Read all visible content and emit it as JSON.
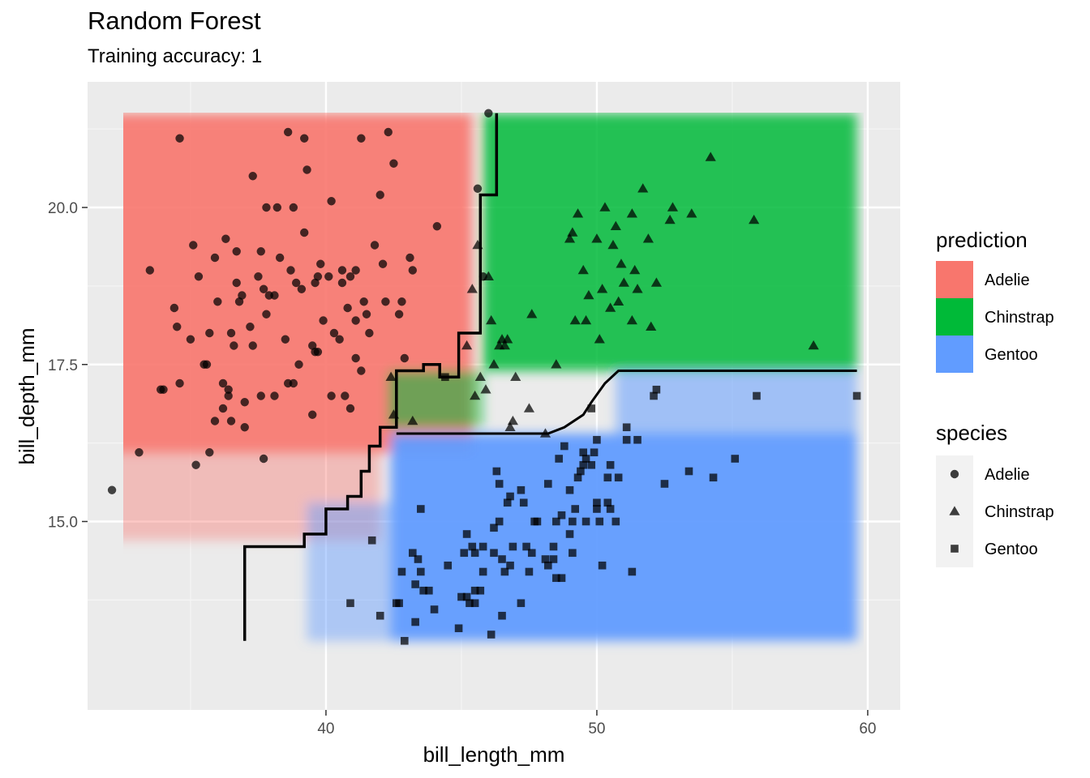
{
  "chart_data": {
    "type": "scatter",
    "title": "Random Forest",
    "subtitle": "Training accuracy: 1",
    "xlabel": "bill_length_mm",
    "ylabel": "bill_depth_mm",
    "xlim": [
      31.2,
      61.2
    ],
    "ylim": [
      12.0,
      22.0
    ],
    "x_ticks": [
      "40",
      "50",
      "60"
    ],
    "y_ticks": [
      "15.0",
      "17.5",
      "20.0"
    ],
    "grid": "on",
    "legend_placement": "right",
    "background": {
      "panel": "#ebebeb",
      "grid_major": "#ffffff"
    },
    "prediction_legend": {
      "title": "prediction",
      "entries": [
        {
          "name": "Adelie",
          "color": "#f8766d"
        },
        {
          "name": "Chinstrap",
          "color": "#00ba38"
        },
        {
          "name": "Gentoo",
          "color": "#619cff"
        }
      ]
    },
    "species_legend": {
      "title": "species",
      "entries": [
        {
          "name": "Adelie",
          "shape": "circle"
        },
        {
          "name": "Chinstrap",
          "shape": "triangle"
        },
        {
          "name": "Gentoo",
          "shape": "square"
        }
      ]
    },
    "prediction_regions": [
      {
        "class": "Adelie",
        "x": [
          32.1,
          45.4
        ],
        "y": [
          16.1,
          21.5
        ],
        "opacity": 0.9
      },
      {
        "class": "Adelie",
        "x": [
          32.1,
          42.0
        ],
        "y": [
          14.7,
          16.1
        ],
        "opacity": 0.4
      },
      {
        "class": "Chinstrap",
        "x": [
          45.8,
          59.6
        ],
        "y": [
          17.4,
          21.5
        ],
        "opacity": 0.85
      },
      {
        "class": "Chinstrap",
        "x": [
          42.3,
          45.8
        ],
        "y": [
          16.5,
          17.4
        ],
        "opacity": 0.55
      },
      {
        "class": "Gentoo",
        "x": [
          42.4,
          59.6
        ],
        "y": [
          13.1,
          16.4
        ],
        "opacity": 0.95
      },
      {
        "class": "Gentoo",
        "x": [
          50.7,
          59.6
        ],
        "y": [
          16.4,
          17.4
        ],
        "opacity": 0.55
      },
      {
        "class": "Gentoo",
        "x": [
          39.3,
          42.4
        ],
        "y": [
          13.1,
          15.3
        ],
        "opacity": 0.45
      }
    ],
    "decision_boundary": [
      [
        46.3,
        21.5
      ],
      [
        46.3,
        20.2
      ],
      [
        45.7,
        20.2
      ],
      [
        45.7,
        18.0
      ],
      [
        44.9,
        18.0
      ],
      [
        44.9,
        17.3
      ],
      [
        44.2,
        17.3
      ],
      [
        44.2,
        17.5
      ],
      [
        43.6,
        17.5
      ],
      [
        43.6,
        17.4
      ],
      [
        42.6,
        17.4
      ],
      [
        42.6,
        16.5
      ],
      [
        42.0,
        16.5
      ],
      [
        42.0,
        16.2
      ],
      [
        41.6,
        16.2
      ],
      [
        41.6,
        15.8
      ],
      [
        41.3,
        15.8
      ],
      [
        41.3,
        15.4
      ],
      [
        40.8,
        15.4
      ],
      [
        40.8,
        15.2
      ],
      [
        40.0,
        15.2
      ],
      [
        40.0,
        14.8
      ],
      [
        39.2,
        14.8
      ],
      [
        39.2,
        14.6
      ],
      [
        37.0,
        14.6
      ],
      [
        37.0,
        13.1
      ]
    ],
    "boundary_gentoo_top": [
      [
        42.6,
        16.4
      ],
      [
        48.2,
        16.4
      ],
      [
        48.8,
        16.5
      ],
      [
        49.5,
        16.7
      ],
      [
        49.8,
        16.9
      ],
      [
        50.3,
        17.2
      ],
      [
        50.8,
        17.4
      ],
      [
        59.6,
        17.4
      ]
    ],
    "series": [
      {
        "name": "Adelie",
        "shape": "circle",
        "points": [
          [
            32.1,
            15.5
          ],
          [
            33.1,
            16.1
          ],
          [
            33.5,
            19.0
          ],
          [
            33.9,
            17.1
          ],
          [
            34.0,
            17.1
          ],
          [
            34.4,
            18.4
          ],
          [
            34.5,
            18.1
          ],
          [
            34.6,
            21.1
          ],
          [
            34.6,
            17.2
          ],
          [
            35.0,
            17.9
          ],
          [
            35.1,
            19.4
          ],
          [
            35.2,
            15.9
          ],
          [
            35.3,
            18.9
          ],
          [
            35.5,
            17.5
          ],
          [
            35.6,
            17.5
          ],
          [
            35.7,
            16.1
          ],
          [
            35.7,
            18.0
          ],
          [
            35.9,
            16.6
          ],
          [
            35.9,
            19.2
          ],
          [
            36.0,
            18.5
          ],
          [
            36.2,
            17.2
          ],
          [
            36.2,
            16.8
          ],
          [
            36.3,
            19.5
          ],
          [
            36.4,
            17.1
          ],
          [
            36.4,
            17.0
          ],
          [
            36.5,
            16.6
          ],
          [
            36.5,
            18.0
          ],
          [
            36.6,
            17.8
          ],
          [
            36.7,
            18.8
          ],
          [
            36.7,
            19.3
          ],
          [
            36.8,
            18.5
          ],
          [
            36.9,
            18.6
          ],
          [
            37.0,
            16.9
          ],
          [
            37.0,
            16.5
          ],
          [
            37.2,
            18.1
          ],
          [
            37.3,
            17.8
          ],
          [
            37.3,
            20.5
          ],
          [
            37.5,
            18.9
          ],
          [
            37.6,
            19.3
          ],
          [
            37.6,
            17.0
          ],
          [
            37.7,
            16.0
          ],
          [
            37.7,
            18.7
          ],
          [
            37.8,
            20.0
          ],
          [
            37.8,
            18.3
          ],
          [
            37.9,
            18.6
          ],
          [
            38.1,
            17.0
          ],
          [
            38.1,
            18.6
          ],
          [
            38.2,
            20.0
          ],
          [
            38.3,
            19.2
          ],
          [
            38.5,
            17.9
          ],
          [
            38.6,
            17.2
          ],
          [
            38.6,
            21.2
          ],
          [
            38.7,
            19.0
          ],
          [
            38.8,
            17.2
          ],
          [
            38.8,
            20.0
          ],
          [
            38.9,
            18.8
          ],
          [
            39.0,
            17.5
          ],
          [
            39.1,
            18.7
          ],
          [
            39.2,
            19.6
          ],
          [
            39.2,
            21.1
          ],
          [
            39.3,
            20.6
          ],
          [
            39.5,
            16.7
          ],
          [
            39.5,
            17.8
          ],
          [
            39.6,
            17.7
          ],
          [
            39.6,
            18.8
          ],
          [
            39.7,
            17.7
          ],
          [
            39.7,
            18.9
          ],
          [
            39.8,
            19.1
          ],
          [
            39.9,
            18.2
          ],
          [
            40.1,
            18.9
          ],
          [
            40.2,
            17.0
          ],
          [
            40.2,
            20.1
          ],
          [
            40.3,
            18.0
          ],
          [
            40.5,
            17.9
          ],
          [
            40.6,
            18.8
          ],
          [
            40.6,
            19.0
          ],
          [
            40.7,
            17.0
          ],
          [
            40.8,
            18.4
          ],
          [
            40.9,
            16.8
          ],
          [
            40.9,
            18.9
          ],
          [
            41.1,
            17.6
          ],
          [
            41.1,
            19.0
          ],
          [
            41.1,
            18.2
          ],
          [
            41.3,
            17.4
          ],
          [
            41.3,
            21.1
          ],
          [
            41.4,
            18.5
          ],
          [
            41.5,
            18.3
          ],
          [
            41.6,
            18.0
          ],
          [
            41.8,
            19.4
          ],
          [
            42.0,
            20.2
          ],
          [
            42.1,
            19.1
          ],
          [
            42.2,
            18.5
          ],
          [
            42.3,
            21.2
          ],
          [
            42.5,
            20.7
          ],
          [
            42.7,
            18.3
          ],
          [
            42.8,
            18.5
          ],
          [
            42.9,
            17.6
          ],
          [
            43.1,
            19.2
          ],
          [
            43.2,
            19.0
          ],
          [
            44.1,
            19.7
          ],
          [
            45.6,
            20.3
          ],
          [
            45.8,
            18.9
          ],
          [
            46.0,
            21.5
          ]
        ]
      },
      {
        "name": "Chinstrap",
        "shape": "triangle",
        "points": [
          [
            42.4,
            17.3
          ],
          [
            42.5,
            16.7
          ],
          [
            43.2,
            16.6
          ],
          [
            45.2,
            17.8
          ],
          [
            45.4,
            18.7
          ],
          [
            45.5,
            17.0
          ],
          [
            45.6,
            19.4
          ],
          [
            45.7,
            17.3
          ],
          [
            45.9,
            17.1
          ],
          [
            46.0,
            18.9
          ],
          [
            46.1,
            18.2
          ],
          [
            46.2,
            17.5
          ],
          [
            46.4,
            17.8
          ],
          [
            46.5,
            17.9
          ],
          [
            46.6,
            17.8
          ],
          [
            46.7,
            17.9
          ],
          [
            46.8,
            16.5
          ],
          [
            46.9,
            16.6
          ],
          [
            47.0,
            17.3
          ],
          [
            47.5,
            16.8
          ],
          [
            47.6,
            18.3
          ],
          [
            48.1,
            16.4
          ],
          [
            48.5,
            17.5
          ],
          [
            49.0,
            19.5
          ],
          [
            49.1,
            19.6
          ],
          [
            49.2,
            18.2
          ],
          [
            49.3,
            19.9
          ],
          [
            49.5,
            19.0
          ],
          [
            49.6,
            18.2
          ],
          [
            49.7,
            18.6
          ],
          [
            50.0,
            19.5
          ],
          [
            50.1,
            17.9
          ],
          [
            50.2,
            18.7
          ],
          [
            50.3,
            20.0
          ],
          [
            50.5,
            18.4
          ],
          [
            50.6,
            19.4
          ],
          [
            50.7,
            19.7
          ],
          [
            50.8,
            18.5
          ],
          [
            50.9,
            19.1
          ],
          [
            51.0,
            18.8
          ],
          [
            51.3,
            18.2
          ],
          [
            51.3,
            19.9
          ],
          [
            51.4,
            19.0
          ],
          [
            51.5,
            18.7
          ],
          [
            51.7,
            20.3
          ],
          [
            51.9,
            19.5
          ],
          [
            52.0,
            18.1
          ],
          [
            52.2,
            18.8
          ],
          [
            52.7,
            19.8
          ],
          [
            52.8,
            20.0
          ],
          [
            53.5,
            19.9
          ],
          [
            54.2,
            20.8
          ],
          [
            55.8,
            19.8
          ],
          [
            58.0,
            17.8
          ]
        ]
      },
      {
        "name": "Gentoo",
        "shape": "square",
        "points": [
          [
            40.9,
            13.7
          ],
          [
            41.7,
            14.7
          ],
          [
            42.0,
            13.5
          ],
          [
            42.6,
            13.7
          ],
          [
            42.7,
            13.7
          ],
          [
            42.8,
            14.2
          ],
          [
            42.9,
            13.1
          ],
          [
            43.2,
            14.5
          ],
          [
            43.3,
            13.4
          ],
          [
            43.3,
            14.0
          ],
          [
            43.4,
            14.4
          ],
          [
            43.5,
            14.2
          ],
          [
            43.5,
            15.2
          ],
          [
            43.6,
            13.9
          ],
          [
            43.8,
            13.9
          ],
          [
            44.0,
            13.6
          ],
          [
            44.4,
            17.3
          ],
          [
            44.5,
            14.3
          ],
          [
            44.9,
            13.3
          ],
          [
            45.0,
            13.8
          ],
          [
            45.1,
            14.5
          ],
          [
            45.2,
            13.8
          ],
          [
            45.2,
            14.8
          ],
          [
            45.3,
            13.7
          ],
          [
            45.4,
            14.6
          ],
          [
            45.5,
            13.7
          ],
          [
            45.5,
            13.9
          ],
          [
            45.5,
            14.5
          ],
          [
            45.7,
            13.9
          ],
          [
            45.8,
            14.2
          ],
          [
            45.8,
            14.6
          ],
          [
            46.1,
            13.2
          ],
          [
            46.2,
            14.5
          ],
          [
            46.2,
            14.9
          ],
          [
            46.3,
            15.8
          ],
          [
            46.4,
            15.0
          ],
          [
            46.4,
            15.6
          ],
          [
            46.5,
            13.5
          ],
          [
            46.5,
            14.4
          ],
          [
            46.6,
            14.2
          ],
          [
            46.7,
            15.3
          ],
          [
            46.8,
            14.3
          ],
          [
            46.8,
            15.4
          ],
          [
            46.9,
            14.6
          ],
          [
            47.2,
            13.7
          ],
          [
            47.2,
            15.5
          ],
          [
            47.3,
            15.3
          ],
          [
            47.4,
            14.6
          ],
          [
            47.5,
            14.2
          ],
          [
            47.6,
            14.5
          ],
          [
            47.7,
            15.0
          ],
          [
            47.8,
            15.0
          ],
          [
            48.1,
            14.4
          ],
          [
            48.2,
            14.3
          ],
          [
            48.2,
            15.6
          ],
          [
            48.4,
            14.4
          ],
          [
            48.4,
            14.6
          ],
          [
            48.5,
            14.1
          ],
          [
            48.5,
            15.0
          ],
          [
            48.6,
            16.0
          ],
          [
            48.7,
            14.1
          ],
          [
            48.7,
            15.1
          ],
          [
            48.8,
            16.2
          ],
          [
            49.0,
            14.8
          ],
          [
            49.0,
            15.5
          ],
          [
            49.1,
            14.5
          ],
          [
            49.1,
            15.0
          ],
          [
            49.2,
            15.2
          ],
          [
            49.3,
            15.7
          ],
          [
            49.4,
            15.8
          ],
          [
            49.5,
            15.9
          ],
          [
            49.5,
            16.1
          ],
          [
            49.6,
            15.0
          ],
          [
            49.6,
            16.0
          ],
          [
            49.8,
            15.9
          ],
          [
            49.8,
            16.8
          ],
          [
            49.9,
            16.1
          ],
          [
            50.0,
            15.2
          ],
          [
            50.0,
            15.3
          ],
          [
            50.0,
            16.3
          ],
          [
            50.1,
            15.0
          ],
          [
            50.2,
            14.3
          ],
          [
            50.4,
            15.3
          ],
          [
            50.4,
            15.7
          ],
          [
            50.5,
            15.2
          ],
          [
            50.5,
            15.9
          ],
          [
            50.7,
            15.0
          ],
          [
            50.8,
            15.7
          ],
          [
            51.1,
            16.3
          ],
          [
            51.1,
            16.5
          ],
          [
            51.3,
            14.2
          ],
          [
            51.5,
            16.3
          ],
          [
            52.1,
            17.0
          ],
          [
            52.2,
            17.1
          ],
          [
            52.5,
            15.6
          ],
          [
            53.4,
            15.8
          ],
          [
            54.3,
            15.7
          ],
          [
            55.1,
            16.0
          ],
          [
            55.9,
            17.0
          ],
          [
            59.6,
            17.0
          ]
        ]
      }
    ]
  }
}
